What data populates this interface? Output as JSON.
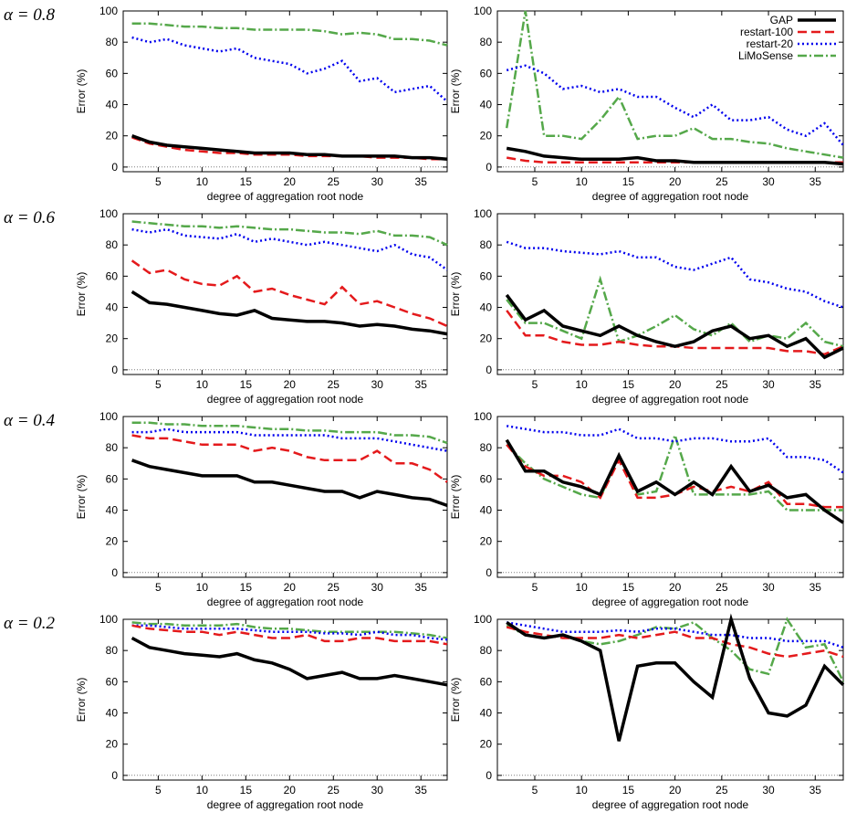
{
  "row_labels": [
    "α = 0.8",
    "α = 0.6",
    "α = 0.4",
    "α = 0.2"
  ],
  "legend": {
    "position": "upper right",
    "entries": [
      {
        "name": "GAP",
        "color": "#000000"
      },
      {
        "name": "restart-100",
        "color": "#e41a1c"
      },
      {
        "name": "restart-20",
        "color": "#0000ee"
      },
      {
        "name": "LiMoSense",
        "color": "#55a84a"
      }
    ]
  },
  "chart_data": [
    {
      "type": "line",
      "xlabel": "degree of aggregation root node",
      "ylabel": "Error (%)",
      "xlim": [
        1,
        38
      ],
      "ylim": [
        -3,
        100
      ],
      "xticks": [
        5,
        10,
        15,
        20,
        25,
        30,
        35
      ],
      "yticks": [
        0,
        20,
        40,
        60,
        80,
        100
      ],
      "x": [
        2,
        4,
        6,
        8,
        10,
        12,
        14,
        16,
        18,
        20,
        22,
        24,
        26,
        28,
        30,
        32,
        34,
        36,
        38
      ],
      "series": [
        {
          "values": [
            20,
            16,
            14,
            13,
            12,
            11,
            10,
            9,
            9,
            9,
            8,
            8,
            7,
            7,
            7,
            7,
            6,
            6,
            5
          ]
        },
        {
          "values": [
            19,
            15,
            13,
            11,
            10,
            9,
            9,
            8,
            8,
            8,
            7,
            7,
            7,
            7,
            6,
            6,
            6,
            5,
            5
          ]
        },
        {
          "values": [
            83,
            80,
            82,
            78,
            76,
            74,
            76,
            70,
            68,
            66,
            60,
            63,
            68,
            55,
            57,
            48,
            50,
            52,
            42
          ]
        },
        {
          "values": [
            92,
            92,
            91,
            90,
            90,
            89,
            89,
            88,
            88,
            88,
            88,
            87,
            85,
            86,
            85,
            82,
            82,
            81,
            78
          ]
        }
      ]
    },
    {
      "type": "line",
      "xlabel": "degree of aggregation root node",
      "ylabel": "Error (%)",
      "xlim": [
        1,
        38
      ],
      "ylim": [
        -3,
        100
      ],
      "xticks": [
        5,
        10,
        15,
        20,
        25,
        30,
        35
      ],
      "yticks": [
        0,
        20,
        40,
        60,
        80,
        100
      ],
      "x": [
        2,
        4,
        6,
        8,
        10,
        12,
        14,
        16,
        18,
        20,
        22,
        24,
        26,
        28,
        30,
        32,
        34,
        36,
        38
      ],
      "series": [
        {
          "values": [
            12,
            10,
            7,
            6,
            5,
            5,
            5,
            6,
            4,
            4,
            3,
            3,
            3,
            3,
            3,
            3,
            3,
            3,
            2
          ]
        },
        {
          "values": [
            6,
            4,
            3,
            3,
            3,
            3,
            3,
            3,
            3,
            3,
            3,
            3,
            3,
            3,
            3,
            3,
            3,
            3,
            3
          ]
        },
        {
          "values": [
            62,
            65,
            60,
            50,
            52,
            48,
            50,
            45,
            45,
            38,
            32,
            40,
            30,
            30,
            32,
            24,
            20,
            28,
            14
          ]
        },
        {
          "values": [
            25,
            100,
            20,
            20,
            18,
            30,
            45,
            18,
            20,
            20,
            25,
            18,
            18,
            16,
            15,
            12,
            10,
            8,
            6
          ]
        }
      ]
    },
    {
      "type": "line",
      "xlabel": "degree of aggregation root node",
      "ylabel": "Error (%)",
      "xlim": [
        1,
        38
      ],
      "ylim": [
        -3,
        100
      ],
      "xticks": [
        5,
        10,
        15,
        20,
        25,
        30,
        35
      ],
      "yticks": [
        0,
        20,
        40,
        60,
        80,
        100
      ],
      "x": [
        2,
        4,
        6,
        8,
        10,
        12,
        14,
        16,
        18,
        20,
        22,
        24,
        26,
        28,
        30,
        32,
        34,
        36,
        38
      ],
      "series": [
        {
          "values": [
            50,
            43,
            42,
            40,
            38,
            36,
            35,
            38,
            33,
            32,
            31,
            31,
            30,
            28,
            29,
            28,
            26,
            25,
            23
          ]
        },
        {
          "values": [
            70,
            62,
            64,
            58,
            55,
            54,
            60,
            50,
            52,
            48,
            45,
            42,
            53,
            42,
            44,
            40,
            36,
            33,
            28
          ]
        },
        {
          "values": [
            90,
            88,
            90,
            86,
            85,
            84,
            87,
            82,
            84,
            82,
            80,
            82,
            80,
            78,
            76,
            80,
            74,
            72,
            64
          ]
        },
        {
          "values": [
            95,
            94,
            93,
            92,
            92,
            91,
            92,
            91,
            90,
            90,
            89,
            88,
            88,
            87,
            89,
            86,
            86,
            85,
            80
          ]
        }
      ]
    },
    {
      "type": "line",
      "xlabel": "degree of aggregation root node",
      "ylabel": "Error (%)",
      "xlim": [
        1,
        38
      ],
      "ylim": [
        -3,
        100
      ],
      "xticks": [
        5,
        10,
        15,
        20,
        25,
        30,
        35
      ],
      "yticks": [
        0,
        20,
        40,
        60,
        80,
        100
      ],
      "x": [
        2,
        4,
        6,
        8,
        10,
        12,
        14,
        16,
        18,
        20,
        22,
        24,
        26,
        28,
        30,
        32,
        34,
        36,
        38
      ],
      "series": [
        {
          "values": [
            48,
            32,
            38,
            28,
            25,
            22,
            28,
            22,
            18,
            15,
            18,
            25,
            28,
            20,
            22,
            15,
            20,
            8,
            14
          ]
        },
        {
          "values": [
            38,
            22,
            22,
            18,
            16,
            16,
            18,
            16,
            15,
            15,
            14,
            14,
            14,
            14,
            14,
            12,
            12,
            10,
            15
          ]
        },
        {
          "values": [
            82,
            78,
            78,
            76,
            75,
            74,
            76,
            72,
            72,
            66,
            64,
            68,
            72,
            58,
            56,
            52,
            50,
            44,
            40
          ]
        },
        {
          "values": [
            45,
            30,
            30,
            25,
            20,
            58,
            18,
            22,
            28,
            35,
            26,
            22,
            30,
            18,
            22,
            20,
            30,
            18,
            15
          ]
        }
      ]
    },
    {
      "type": "line",
      "xlabel": "degree of aggregation root node",
      "ylabel": "Error (%)",
      "xlim": [
        1,
        38
      ],
      "ylim": [
        -3,
        100
      ],
      "xticks": [
        5,
        10,
        15,
        20,
        25,
        30,
        35
      ],
      "yticks": [
        0,
        20,
        40,
        60,
        80,
        100
      ],
      "x": [
        2,
        4,
        6,
        8,
        10,
        12,
        14,
        16,
        18,
        20,
        22,
        24,
        26,
        28,
        30,
        32,
        34,
        36,
        38
      ],
      "series": [
        {
          "values": [
            72,
            68,
            66,
            64,
            62,
            62,
            62,
            58,
            58,
            56,
            54,
            52,
            52,
            48,
            52,
            50,
            48,
            47,
            43
          ]
        },
        {
          "values": [
            88,
            86,
            86,
            84,
            82,
            82,
            82,
            78,
            80,
            78,
            74,
            72,
            72,
            72,
            78,
            70,
            70,
            66,
            58
          ]
        },
        {
          "values": [
            90,
            90,
            92,
            90,
            90,
            90,
            90,
            88,
            88,
            88,
            88,
            88,
            86,
            86,
            86,
            84,
            82,
            80,
            78
          ]
        },
        {
          "values": [
            96,
            96,
            95,
            95,
            94,
            94,
            94,
            93,
            92,
            92,
            91,
            91,
            90,
            90,
            90,
            88,
            88,
            87,
            83
          ]
        }
      ]
    },
    {
      "type": "line",
      "xlabel": "degree of aggregation root node",
      "ylabel": "Error (%)",
      "xlim": [
        1,
        38
      ],
      "ylim": [
        -3,
        100
      ],
      "xticks": [
        5,
        10,
        15,
        20,
        25,
        30,
        35
      ],
      "yticks": [
        0,
        20,
        40,
        60,
        80,
        100
      ],
      "x": [
        2,
        4,
        6,
        8,
        10,
        12,
        14,
        16,
        18,
        20,
        22,
        24,
        26,
        28,
        30,
        32,
        34,
        36,
        38
      ],
      "series": [
        {
          "values": [
            85,
            65,
            65,
            58,
            55,
            50,
            75,
            52,
            58,
            50,
            58,
            50,
            68,
            52,
            56,
            48,
            50,
            40,
            32
          ]
        },
        {
          "values": [
            82,
            68,
            62,
            62,
            58,
            48,
            72,
            48,
            48,
            50,
            55,
            52,
            55,
            52,
            58,
            44,
            44,
            42,
            42
          ]
        },
        {
          "values": [
            94,
            92,
            90,
            90,
            88,
            88,
            92,
            86,
            86,
            84,
            86,
            86,
            84,
            84,
            86,
            74,
            74,
            72,
            64
          ]
        },
        {
          "values": [
            82,
            70,
            60,
            55,
            50,
            48,
            75,
            50,
            52,
            88,
            50,
            50,
            50,
            50,
            52,
            40,
            40,
            40,
            40
          ]
        }
      ]
    },
    {
      "type": "line",
      "xlabel": "degree of aggregation root node",
      "ylabel": "Error (%)",
      "xlim": [
        1,
        38
      ],
      "ylim": [
        -3,
        100
      ],
      "xticks": [
        5,
        10,
        15,
        20,
        25,
        30,
        35
      ],
      "yticks": [
        0,
        20,
        40,
        60,
        80,
        100
      ],
      "x": [
        2,
        4,
        6,
        8,
        10,
        12,
        14,
        16,
        18,
        20,
        22,
        24,
        26,
        28,
        30,
        32,
        34,
        36,
        38
      ],
      "series": [
        {
          "values": [
            88,
            82,
            80,
            78,
            77,
            76,
            78,
            74,
            72,
            68,
            62,
            64,
            66,
            62,
            62,
            64,
            62,
            60,
            58
          ]
        },
        {
          "values": [
            96,
            94,
            93,
            92,
            92,
            90,
            92,
            90,
            88,
            88,
            90,
            86,
            86,
            88,
            88,
            86,
            86,
            86,
            84
          ]
        },
        {
          "values": [
            96,
            96,
            95,
            94,
            94,
            94,
            94,
            93,
            92,
            92,
            92,
            91,
            91,
            90,
            92,
            90,
            90,
            88,
            87
          ]
        },
        {
          "values": [
            98,
            97,
            97,
            96,
            96,
            96,
            97,
            95,
            94,
            94,
            93,
            92,
            92,
            92,
            92,
            92,
            91,
            90,
            88
          ]
        }
      ]
    },
    {
      "type": "line",
      "xlabel": "degree of aggregation root node",
      "ylabel": "Error (%)",
      "xlim": [
        1,
        38
      ],
      "ylim": [
        -3,
        100
      ],
      "xticks": [
        5,
        10,
        15,
        20,
        25,
        30,
        35
      ],
      "yticks": [
        0,
        20,
        40,
        60,
        80,
        100
      ],
      "x": [
        2,
        4,
        6,
        8,
        10,
        12,
        14,
        16,
        18,
        20,
        22,
        24,
        26,
        28,
        30,
        32,
        34,
        36,
        38
      ],
      "series": [
        {
          "values": [
            98,
            90,
            88,
            90,
            86,
            80,
            22,
            70,
            72,
            72,
            60,
            50,
            100,
            62,
            40,
            38,
            45,
            70,
            58
          ]
        },
        {
          "values": [
            95,
            92,
            90,
            88,
            88,
            88,
            90,
            88,
            90,
            92,
            88,
            88,
            84,
            82,
            78,
            76,
            78,
            80,
            76
          ]
        },
        {
          "values": [
            98,
            96,
            94,
            92,
            92,
            92,
            93,
            92,
            94,
            94,
            92,
            90,
            90,
            88,
            88,
            86,
            86,
            86,
            82
          ]
        },
        {
          "values": [
            96,
            90,
            88,
            90,
            86,
            84,
            86,
            90,
            95,
            94,
            98,
            88,
            80,
            68,
            65,
            100,
            82,
            84,
            60
          ]
        }
      ]
    }
  ]
}
